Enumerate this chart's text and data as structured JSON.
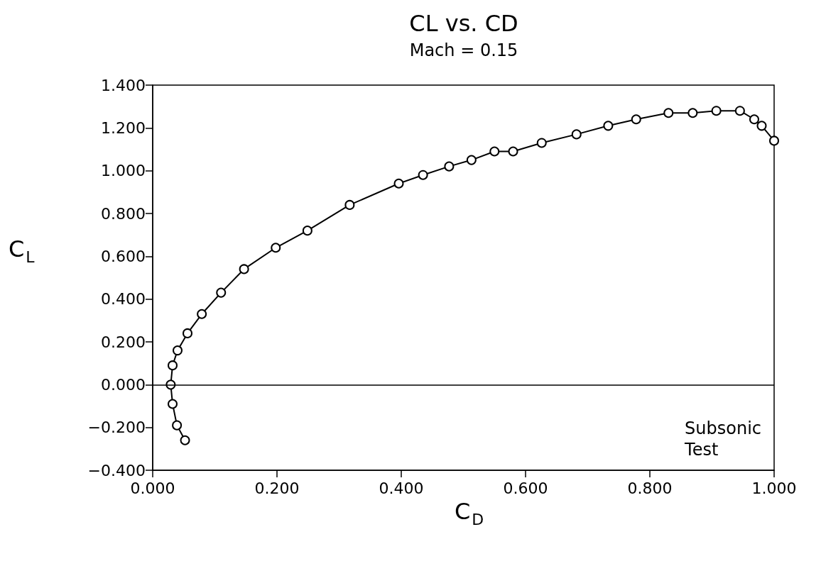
{
  "chart_data": {
    "type": "line",
    "title": "CL vs. CD",
    "subtitle": "Mach = 0.15",
    "xlabel": "C$_{D}$",
    "ylabel": "C$_{L}$",
    "x": [
      0.052,
      0.039,
      0.032,
      0.029,
      0.032,
      0.04,
      0.056,
      0.079,
      0.11,
      0.147,
      0.198,
      0.249,
      0.317,
      0.396,
      0.435,
      0.477,
      0.513,
      0.55,
      0.58,
      0.626,
      0.682,
      0.733,
      0.778,
      0.83,
      0.869,
      0.907,
      0.945,
      0.968,
      0.98,
      1.0
    ],
    "series": [
      {
        "color": "#000000",
        "values": [
          -0.26,
          -0.19,
          -0.09,
          0.0,
          0.09,
          0.16,
          0.24,
          0.33,
          0.43,
          0.54,
          0.64,
          0.72,
          0.84,
          0.94,
          0.98,
          1.02,
          1.05,
          1.09,
          1.09,
          1.13,
          1.17,
          1.21,
          1.24,
          1.27,
          1.27,
          1.28,
          1.28,
          1.24,
          1.21,
          1.14
        ]
      }
    ],
    "xlim": [
      0,
      1
    ],
    "xticks": [
      {
        "value": 0,
        "label": "0.000"
      },
      {
        "value": 0.2,
        "label": "0.200"
      },
      {
        "value": 0.4,
        "label": "0.400"
      },
      {
        "value": 0.6,
        "label": "0.600"
      },
      {
        "value": 0.8,
        "label": "0.800"
      },
      {
        "value": 1,
        "label": "1.000"
      }
    ],
    "ylim": [
      -0.4,
      1.4
    ],
    "yticks": [
      {
        "value": -0.4,
        "label": "−0.400"
      },
      {
        "value": -0.2,
        "label": "−0.200"
      },
      {
        "value": 0,
        "label": "0.000"
      },
      {
        "value": 0.2,
        "label": "0.200"
      },
      {
        "value": 0.4,
        "label": "0.400"
      },
      {
        "value": 0.6,
        "label": "0.600"
      },
      {
        "value": 0.8,
        "label": "0.800"
      },
      {
        "value": 1,
        "label": "1.000"
      },
      {
        "value": 1.2,
        "label": "1.200"
      },
      {
        "value": 1.4,
        "label": "1.400"
      }
    ],
    "ref_lines": [
      {
        "axis": "y",
        "value": 0,
        "color": "#000000",
        "line_style": "solid"
      }
    ],
    "annotations": [
      "Subsonic\nTest"
    ],
    "grid": false,
    "marker": "circle",
    "line_style": "solid"
  }
}
